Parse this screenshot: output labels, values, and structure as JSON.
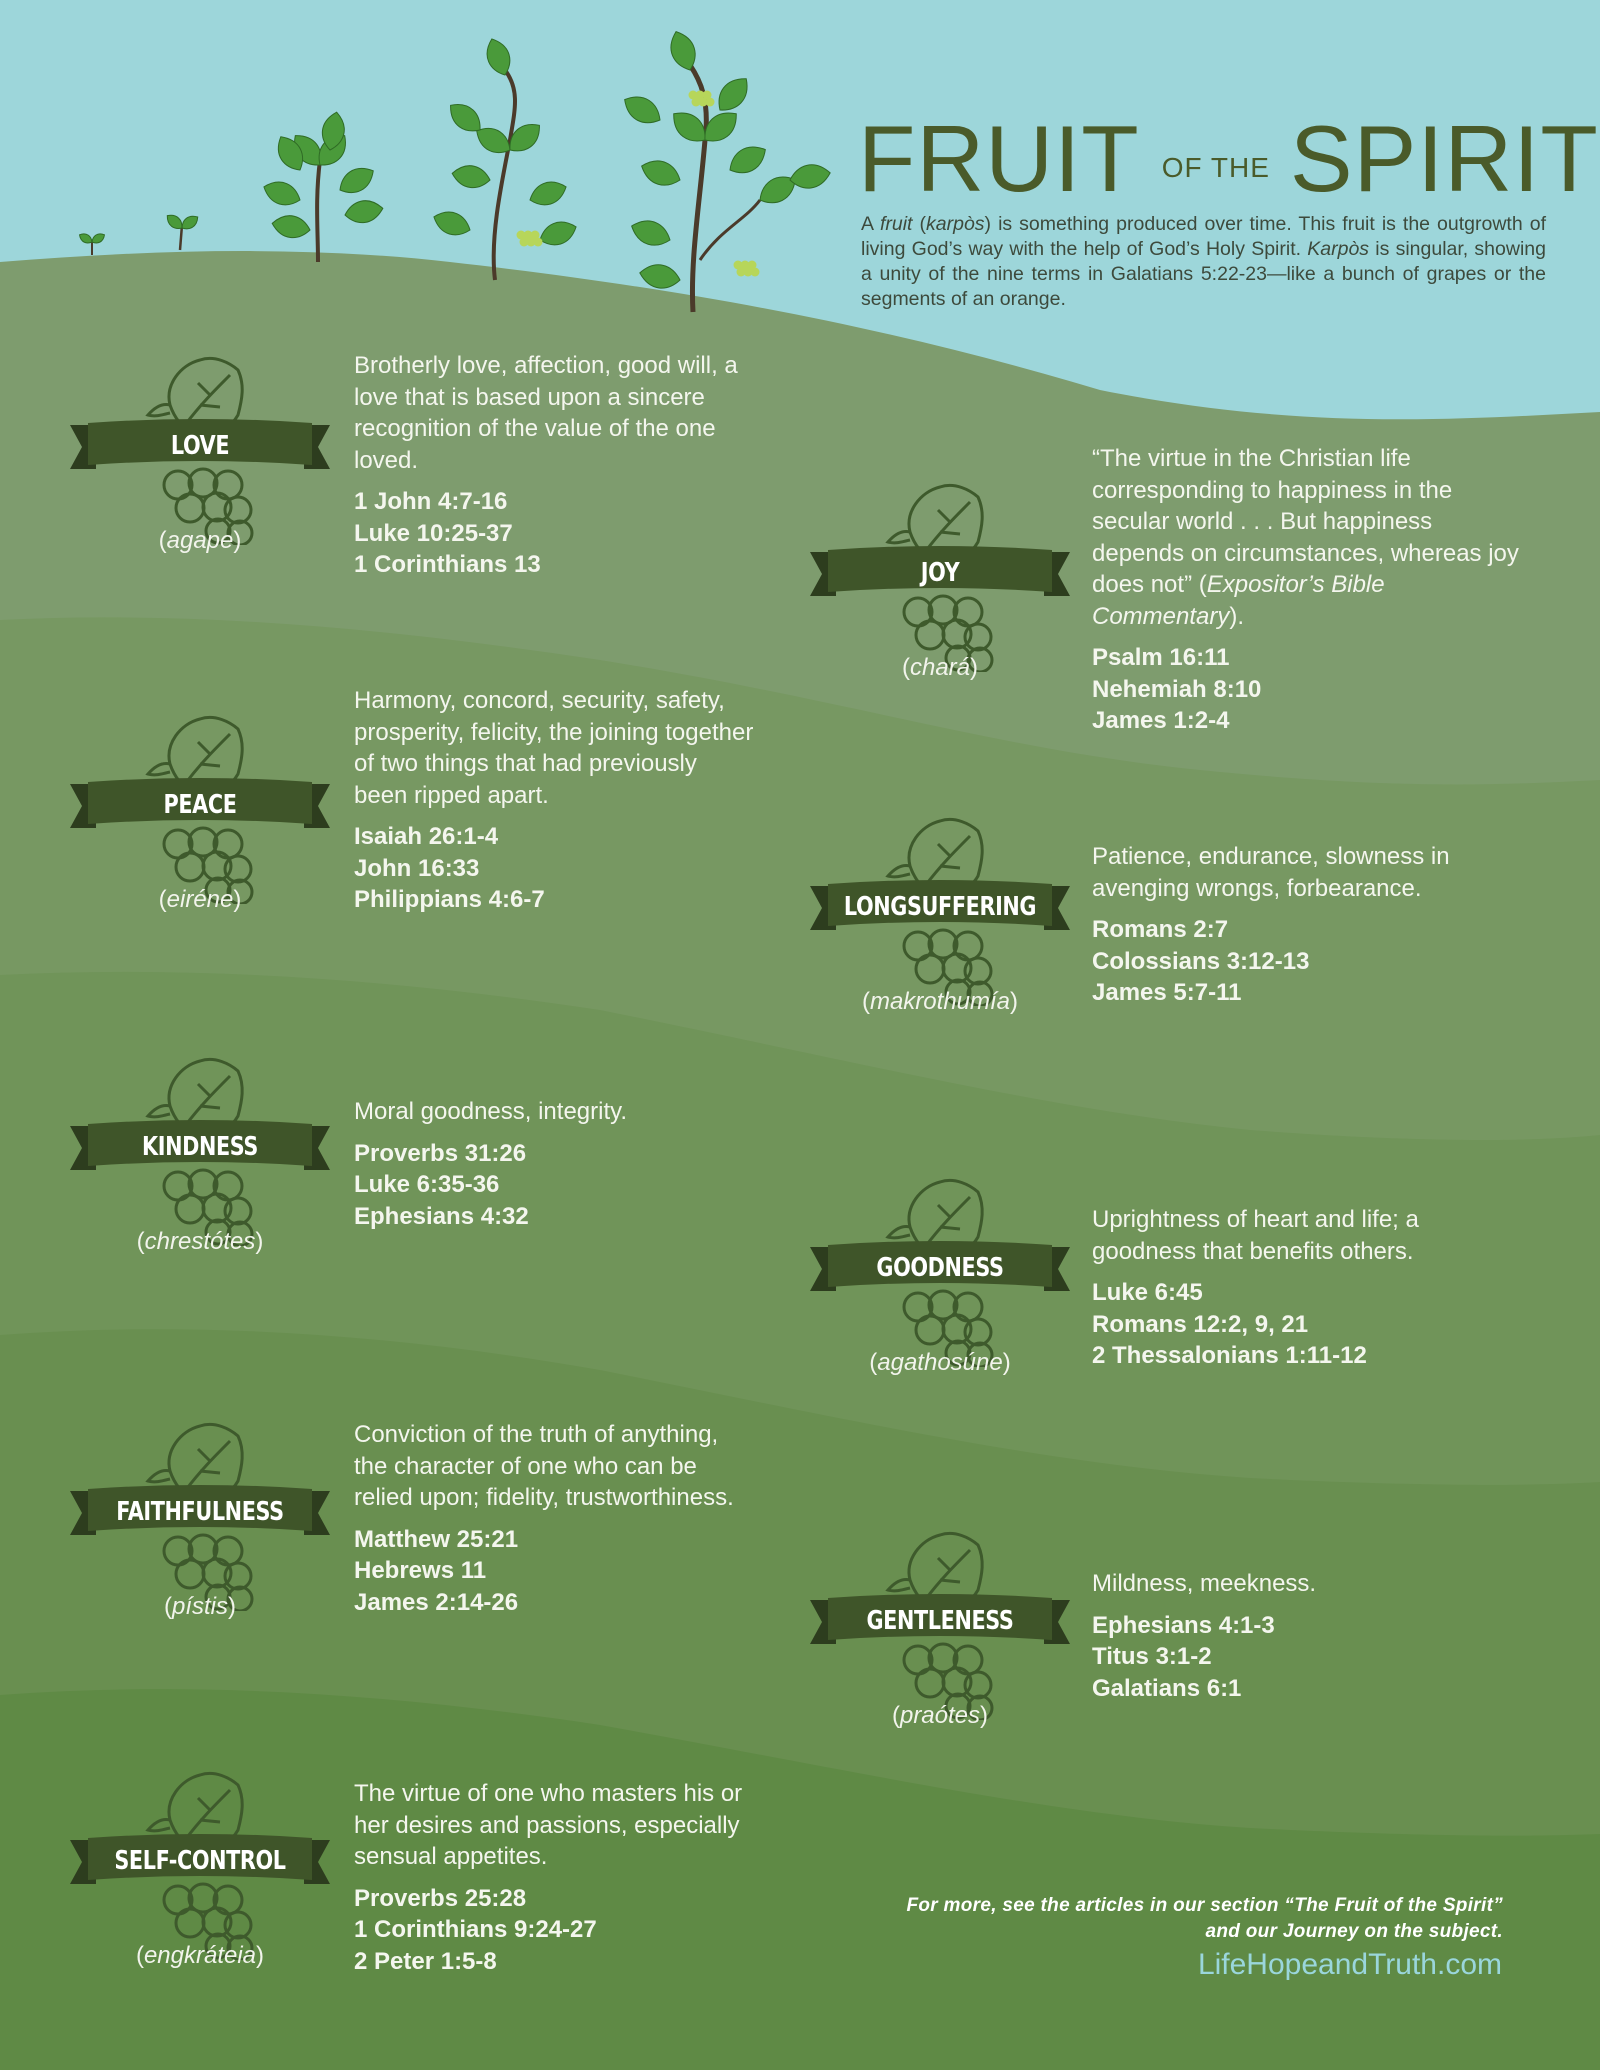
{
  "colors": {
    "sky": "#9dd6da",
    "title": "#4a5b2a",
    "ribbon": "#3f5529",
    "ribbon_tail": "#2d3d1e",
    "url": "#9ad6dc",
    "bands": [
      "#7e9c6e",
      "#779862",
      "#709459",
      "#698f50",
      "#5f8a45",
      "#53813a"
    ]
  },
  "header": {
    "title_word1": "FRUIT",
    "title_small": "OF THE",
    "title_word2": "SPIRIT",
    "intro": [
      {
        "text": "A ",
        "italic": false
      },
      {
        "text": "fruit",
        "italic": true
      },
      {
        "text": " (",
        "italic": false
      },
      {
        "text": "karpòs",
        "italic": true
      },
      {
        "text": ") is something produced over time. This fruit is the outgrowth of living God’s way with the help of God’s Holy Spirit. ",
        "italic": false
      },
      {
        "text": "Karpòs",
        "italic": true
      },
      {
        "text": " is singular, showing a unity of the nine terms in Galatians 5:22-23—like a bunch of grapes or the segments of an orange.",
        "italic": false
      }
    ]
  },
  "fruits": [
    {
      "name": "LOVE",
      "greek": "agape",
      "side": "left",
      "description": [
        {
          "text": "Brotherly love, affection, good will, a love that is based upon a sincere recognition of the value of the one loved.",
          "italic": false
        }
      ],
      "references": [
        "1 John 4:7-16",
        "Luke 10:25-37",
        "1 Corinthians 13"
      ]
    },
    {
      "name": "JOY",
      "greek": "chará",
      "side": "right",
      "description": [
        {
          "text": "“The virtue in the Christian life corresponding to happiness in the secular world . . . But happiness depends on circumstances, whereas joy does not” (",
          "italic": false
        },
        {
          "text": "Expositor’s Bible Commentary",
          "italic": true
        },
        {
          "text": ").",
          "italic": false
        }
      ],
      "references": [
        "Psalm 16:11",
        "Nehemiah 8:10",
        "James 1:2-4"
      ]
    },
    {
      "name": "PEACE",
      "greek": "eiréne",
      "side": "left",
      "description": [
        {
          "text": "Harmony, concord, security, safety, prosperity, felicity, the joining together of two things that had previously been ripped apart.",
          "italic": false
        }
      ],
      "references": [
        "Isaiah 26:1-4",
        "John 16:33",
        "Philippians 4:6-7"
      ]
    },
    {
      "name": "LONGSUFFERING",
      "greek": "makrothumía",
      "side": "right",
      "description": [
        {
          "text": "Patience, endurance, slowness in avenging wrongs, forbearance.",
          "italic": false
        }
      ],
      "references": [
        "Romans 2:7",
        "Colossians 3:12-13",
        "James 5:7-11"
      ]
    },
    {
      "name": "KINDNESS",
      "greek": "chrestótes",
      "side": "left",
      "description": [
        {
          "text": "Moral goodness, integrity.",
          "italic": false
        }
      ],
      "references": [
        "Proverbs 31:26",
        "Luke 6:35-36",
        "Ephesians 4:32"
      ]
    },
    {
      "name": "GOODNESS",
      "greek": "agathosúne",
      "side": "right",
      "description": [
        {
          "text": "Uprightness of heart and life; a goodness that benefits others.",
          "italic": false
        }
      ],
      "references": [
        "Luke 6:45",
        "Romans 12:2, 9, 21",
        "2 Thessalonians 1:11-12"
      ]
    },
    {
      "name": "FAITHFULNESS",
      "greek": "pístis",
      "side": "left",
      "description": [
        {
          "text": "Conviction of the truth of anything, the character of one who can be relied upon; fidelity, trustworthiness.",
          "italic": false
        }
      ],
      "references": [
        "Matthew 25:21",
        "Hebrews 11",
        "James 2:14-26"
      ]
    },
    {
      "name": "GENTLENESS",
      "greek": "praótes",
      "side": "right",
      "description": [
        {
          "text": "Mildness, meekness.",
          "italic": false
        }
      ],
      "references": [
        "Ephesians 4:1-3",
        "Titus 3:1-2",
        "Galatians 6:1"
      ]
    },
    {
      "name": "SELF-CONTROL",
      "greek": "engkráteia",
      "side": "left",
      "description": [
        {
          "text": "The virtue of one who masters his or her desires and passions, especially sensual appetites.",
          "italic": false
        }
      ],
      "references": [
        "Proverbs 25:28",
        "1 Corinthians 9:24-27",
        "2 Peter 1:5-8"
      ]
    }
  ],
  "footer": {
    "line1": "For more, see the articles in our section “The Fruit of the Spirit”",
    "line2": "and our Journey on the subject.",
    "url": "LifeHopeandTruth.com"
  }
}
